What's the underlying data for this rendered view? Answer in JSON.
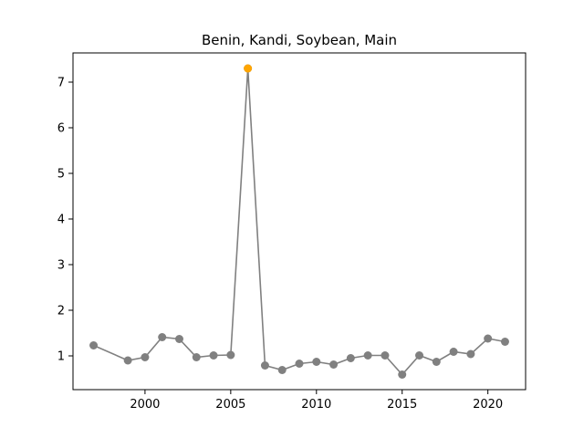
{
  "chart_data": {
    "type": "line",
    "title": "Benin, Kandi, Soybean, Main",
    "xlabel": "",
    "ylabel": "",
    "xlim": [
      1995.8,
      2022.2
    ],
    "ylim": [
      0.26,
      7.64
    ],
    "xticks": [
      2000,
      2005,
      2010,
      2015,
      2020
    ],
    "yticks": [
      1,
      2,
      3,
      4,
      5,
      6,
      7
    ],
    "grid": false,
    "line_color": "#808080",
    "highlight_color": "#ffa500",
    "series": [
      {
        "x": [
          1997,
          1999,
          2000,
          2001,
          2002,
          2003,
          2004,
          2005,
          2006,
          2007,
          2008,
          2009,
          2010,
          2011,
          2012,
          2013,
          2014,
          2015,
          2016,
          2017,
          2018,
          2019,
          2020,
          2021
        ],
        "y": [
          1.23,
          0.9,
          0.97,
          1.41,
          1.37,
          0.97,
          1.01,
          1.02,
          7.3,
          0.79,
          0.69,
          0.83,
          0.87,
          0.81,
          0.95,
          1.01,
          1.01,
          0.59,
          1.01,
          0.87,
          1.09,
          1.04,
          1.38,
          1.31
        ]
      }
    ],
    "highlight": {
      "x": 2006,
      "y": 7.3
    }
  }
}
